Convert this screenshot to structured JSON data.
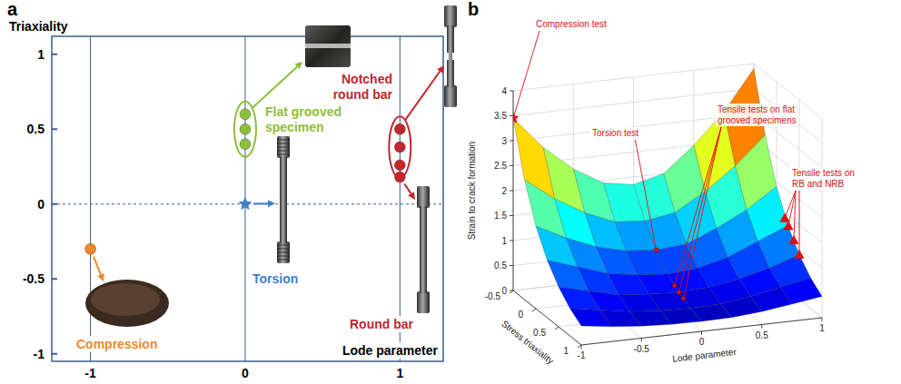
{
  "chart_data": [
    {
      "type": "scatter",
      "panel_label": "a",
      "xlabel": "Lode parameter",
      "ylabel": "Triaxiality",
      "xlim": [
        -1.25,
        1.28
      ],
      "ylim": [
        -1.05,
        1.12
      ],
      "xticks": [
        -1,
        0,
        1
      ],
      "yticks": [
        -1,
        -0.5,
        0,
        0.5,
        1
      ],
      "grid": true,
      "series": [
        {
          "name": "Compression",
          "color": "#f0892a",
          "marker": "circle",
          "x": [
            -1
          ],
          "values": [
            -0.3
          ]
        },
        {
          "name": "Torsion",
          "color": "#3f7fc4",
          "marker": "star",
          "x": [
            0
          ],
          "values": [
            0
          ]
        },
        {
          "name": "Flat grooved specimen",
          "color": "#8cbf3a",
          "marker": "circle",
          "x": [
            0,
            0,
            0
          ],
          "values": [
            0.6,
            0.5,
            0.4
          ]
        },
        {
          "name": "Notched round bar",
          "color": "#c1272d",
          "marker": "circle",
          "x": [
            1,
            1,
            1
          ],
          "values": [
            0.5,
            0.38,
            0.26
          ]
        },
        {
          "name": "Round bar",
          "color": "#c1272d",
          "marker": "circle",
          "x": [
            1
          ],
          "values": [
            0.18
          ]
        }
      ]
    },
    {
      "type": "surface",
      "panel_label": "b",
      "xlabel": "Stress triaxiality",
      "ylabel": "Lode parameter",
      "zlabel": "Strain to crack formation",
      "x": [
        -0.5,
        -0.25,
        0,
        0.25,
        0.5,
        0.75,
        1
      ],
      "y": [
        -1,
        -0.75,
        -0.5,
        -0.25,
        0,
        0.25,
        0.5,
        0.75,
        1
      ],
      "z": [
        [
          3.45,
          2.8,
          2.3,
          1.95,
          1.85,
          2.0,
          2.5,
          3.1,
          3.9
        ],
        [
          2.4,
          1.95,
          1.6,
          1.35,
          1.3,
          1.4,
          1.75,
          2.2,
          2.75
        ],
        [
          1.65,
          1.35,
          1.1,
          0.95,
          0.9,
          0.95,
          1.2,
          1.5,
          1.9
        ],
        [
          1.15,
          0.95,
          0.75,
          0.65,
          0.6,
          0.65,
          0.8,
          1.05,
          1.3
        ],
        [
          0.8,
          0.65,
          0.5,
          0.45,
          0.42,
          0.45,
          0.55,
          0.7,
          0.9
        ],
        [
          0.55,
          0.45,
          0.35,
          0.3,
          0.28,
          0.3,
          0.38,
          0.5,
          0.62
        ],
        [
          0.38,
          0.3,
          0.24,
          0.21,
          0.2,
          0.21,
          0.26,
          0.34,
          0.43
        ]
      ],
      "xlim": [
        -0.5,
        1
      ],
      "ylim": [
        -1,
        1
      ],
      "zlim": [
        0,
        4
      ],
      "xticks": [
        -0.5,
        0,
        0.5,
        1
      ],
      "yticks": [
        -1,
        -0.5,
        0,
        0.5,
        1
      ],
      "zticks": [
        0,
        0.5,
        1,
        1.5,
        2,
        2.5,
        3,
        3.5,
        4
      ],
      "grid": true,
      "color": "#e01010",
      "annotations": [
        {
          "text": "Compression test",
          "marker": "star",
          "points": [
            {
              "x": -0.5,
              "y": -1,
              "z": 3.45
            }
          ]
        },
        {
          "text": "Torsion test",
          "marker": "circle",
          "points": [
            {
              "x": 0,
              "y": 0,
              "z": 0.9
            }
          ]
        },
        {
          "text": "Tensile tests on flat grooved specimens",
          "marker": "circle",
          "points": [
            {
              "x": 0.4,
              "y": 0,
              "z": 0.48
            },
            {
              "x": 0.5,
              "y": 0,
              "z": 0.42
            },
            {
              "x": 0.6,
              "y": 0,
              "z": 0.37
            }
          ]
        },
        {
          "text": "Tensile tests on RB and NRB",
          "marker": "triangle",
          "points": [
            {
              "x": 0.18,
              "y": 1,
              "z": 1.4
            },
            {
              "x": 0.26,
              "y": 1,
              "z": 1.3
            },
            {
              "x": 0.38,
              "y": 1,
              "z": 1.1
            },
            {
              "x": 0.5,
              "y": 1,
              "z": 0.9
            }
          ]
        }
      ]
    }
  ]
}
